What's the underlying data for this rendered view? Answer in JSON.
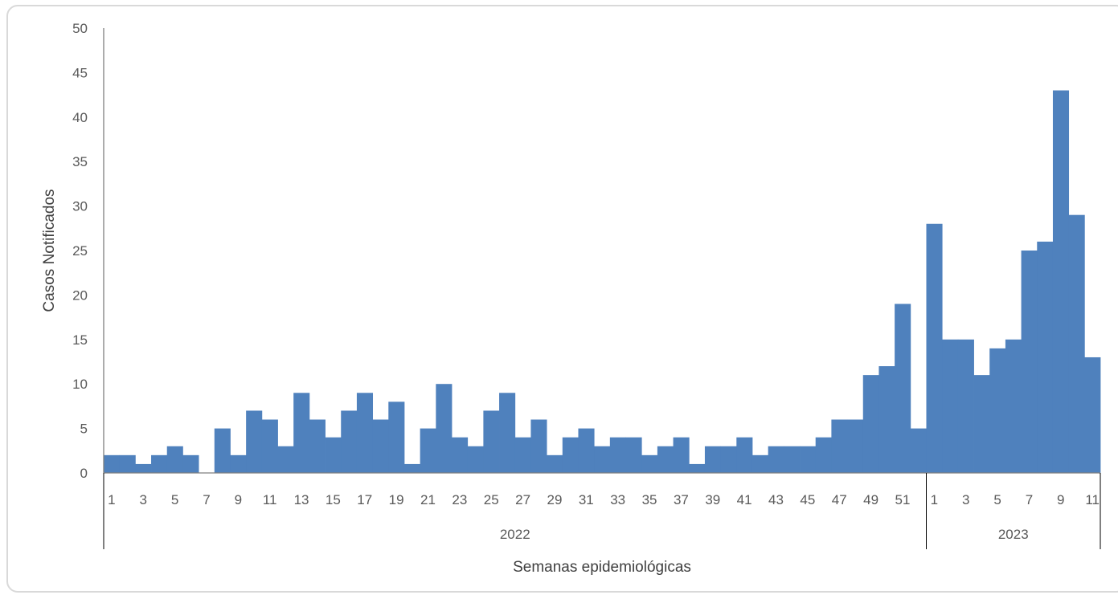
{
  "page_title": "",
  "chart_data": {
    "type": "bar",
    "xlabel": "Semanas epidemiológicas",
    "ylabel": "Casos Notificados",
    "ylim": [
      0,
      50
    ],
    "yticks": [
      0,
      5,
      10,
      15,
      20,
      25,
      30,
      35,
      40,
      45,
      50
    ],
    "grid": false,
    "legend": "none",
    "bar_color": "#4f81bd",
    "groups": [
      {
        "name": "2022",
        "weeks_start": 1,
        "weeks_end": 52,
        "tick_every": 2
      },
      {
        "name": "2023",
        "weeks_start": 1,
        "weeks_end": 11,
        "tick_every": 2
      }
    ],
    "values": [
      2,
      2,
      1,
      2,
      3,
      2,
      0,
      5,
      2,
      7,
      6,
      3,
      9,
      6,
      4,
      7,
      9,
      6,
      8,
      1,
      5,
      10,
      4,
      3,
      7,
      9,
      4,
      6,
      2,
      4,
      5,
      3,
      4,
      4,
      2,
      3,
      4,
      1,
      3,
      3,
      4,
      2,
      3,
      3,
      3,
      4,
      6,
      6,
      11,
      12,
      19,
      5,
      28,
      15,
      15,
      11,
      14,
      15,
      25,
      26,
      43,
      29,
      13
    ]
  }
}
